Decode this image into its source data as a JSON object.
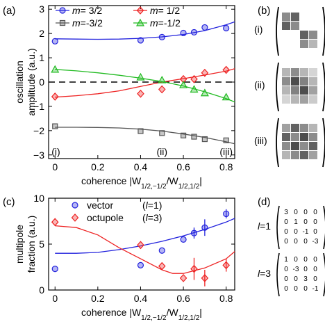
{
  "panels": {
    "a": {
      "label": "(a)"
    },
    "b": {
      "label": "(b)"
    },
    "c": {
      "label": "(c)"
    },
    "d": {
      "label": "(d)"
    }
  },
  "chart_data": [
    {
      "type": "scatter",
      "panel": "(a)",
      "ylabel": [
        "oscillation",
        "amplitude (a.u.)"
      ],
      "xlabel": "coherence |W1/2,-1/2/W1/2,1/2|",
      "xlim": [
        -0.03,
        0.84
      ],
      "ylim": [
        -3.15,
        3.15
      ],
      "xticks": [
        0,
        0.2,
        0.4,
        0.6,
        0.8
      ],
      "xtick_labels": [
        "0",
        "0.2",
        "0.4",
        "0.6",
        "0.8"
      ],
      "yticks": [
        -3,
        -2,
        -1,
        0,
        1,
        2,
        3
      ],
      "ytick_labels": [
        "−3",
        "−2",
        "−1",
        "0",
        "1",
        "2",
        "3"
      ],
      "zero_line": "dashed",
      "annotations": [
        {
          "text": "(i)",
          "x": 0.0
        },
        {
          "text": "(ii)",
          "x": 0.5
        },
        {
          "text": "(iii)",
          "x": 0.8
        }
      ],
      "series": [
        {
          "name": "m= 3/2",
          "color": "#2222dd",
          "marker": "circle",
          "x": [
            0,
            0.4,
            0.5,
            0.6,
            0.65,
            0.7,
            0.8
          ],
          "y": [
            1.68,
            1.72,
            1.85,
            2.02,
            2.05,
            2.25,
            2.22
          ],
          "fit_x": [
            0,
            0.1,
            0.2,
            0.3,
            0.4,
            0.5,
            0.6,
            0.7,
            0.8,
            0.84
          ],
          "fit_y": [
            1.78,
            1.77,
            1.76,
            1.77,
            1.8,
            1.86,
            1.96,
            2.12,
            2.36,
            2.48
          ]
        },
        {
          "name": "m= 1/2",
          "color": "#ee2222",
          "marker": "diamond",
          "x": [
            0,
            0.4,
            0.5,
            0.6,
            0.65,
            0.7,
            0.8
          ],
          "y": [
            -0.6,
            -0.48,
            -0.3,
            0.12,
            0.12,
            0.38,
            0.5
          ],
          "fit_x": [
            0,
            0.1,
            0.2,
            0.3,
            0.4,
            0.5,
            0.6,
            0.7,
            0.8,
            0.84
          ],
          "fit_y": [
            -0.62,
            -0.56,
            -0.48,
            -0.36,
            -0.18,
            0.0,
            0.14,
            0.29,
            0.45,
            0.55
          ]
        },
        {
          "name": "m=-3/2",
          "color": "#555555",
          "marker": "square",
          "x": [
            0,
            0.4,
            0.5,
            0.6,
            0.65,
            0.7,
            0.8
          ],
          "y": [
            -1.82,
            -2.02,
            -2.1,
            -2.2,
            -2.25,
            -2.35,
            -2.4
          ],
          "fit_x": [
            0,
            0.1,
            0.2,
            0.3,
            0.4,
            0.5,
            0.6,
            0.7,
            0.8,
            0.84
          ],
          "fit_y": [
            -1.86,
            -1.86,
            -1.87,
            -1.89,
            -1.94,
            -2.02,
            -2.14,
            -2.28,
            -2.46,
            -2.54
          ]
        },
        {
          "name": "m=-1/2",
          "color": "#22bb22",
          "marker": "triangle",
          "x": [
            0,
            0.4,
            0.5,
            0.6,
            0.65,
            0.7,
            0.8
          ],
          "y": [
            0.52,
            0.2,
            0.08,
            -0.12,
            -0.3,
            -0.45,
            -0.62
          ],
          "fit_x": [
            0,
            0.1,
            0.2,
            0.3,
            0.4,
            0.5,
            0.6,
            0.7,
            0.8,
            0.84
          ],
          "fit_y": [
            0.52,
            0.46,
            0.38,
            0.28,
            0.16,
            0.02,
            -0.16,
            -0.4,
            -0.68,
            -0.82
          ]
        }
      ]
    },
    {
      "type": "scatter",
      "panel": "(c)",
      "ylabel": [
        "multipole",
        "fraction (a.u.)"
      ],
      "xlabel": "coherence |W1/2,-1/2/W1/2,1/2|",
      "xlim": [
        -0.03,
        0.84
      ],
      "ylim": [
        0,
        10
      ],
      "xticks": [
        0,
        0.2,
        0.4,
        0.6,
        0.8
      ],
      "xtick_labels": [
        "0",
        "0.2",
        "0.4",
        "0.6",
        "0.8"
      ],
      "yticks": [
        0,
        5,
        10
      ],
      "ytick_labels": [
        "0",
        "5",
        "10"
      ],
      "series": [
        {
          "name": "vector",
          "legend_suffix": "(l=1)",
          "color": "#2222dd",
          "marker": "circle",
          "x": [
            0,
            0.4,
            0.5,
            0.6,
            0.65,
            0.7,
            0.8
          ],
          "y": [
            2.3,
            2.7,
            4.3,
            5.5,
            6.2,
            6.8,
            8.3
          ],
          "err": [
            0,
            0,
            0,
            0,
            0.6,
            0.9,
            0.5
          ],
          "fit_x": [
            0,
            0.1,
            0.2,
            0.3,
            0.4,
            0.5,
            0.6,
            0.7,
            0.8,
            0.84
          ],
          "fit_y": [
            4.0,
            4.0,
            4.1,
            4.4,
            4.8,
            5.3,
            5.9,
            6.6,
            7.4,
            7.8
          ]
        },
        {
          "name": "octupole",
          "legend_suffix": "(l=3)",
          "color": "#ee2222",
          "marker": "diamond",
          "x": [
            0,
            0.4,
            0.5,
            0.6,
            0.65,
            0.7,
            0.8
          ],
          "y": [
            7.4,
            4.9,
            2.6,
            1.3,
            2.3,
            1.3,
            2.7
          ],
          "err": [
            0,
            0,
            0,
            0,
            1.2,
            0.9,
            0.7
          ],
          "fit_x": [
            0,
            0.1,
            0.2,
            0.3,
            0.4,
            0.5,
            0.55,
            0.6,
            0.7,
            0.8,
            0.84
          ],
          "fit_y": [
            7.0,
            6.8,
            6.0,
            4.6,
            3.4,
            2.2,
            1.8,
            1.8,
            2.4,
            3.4,
            4.2
          ]
        }
      ]
    }
  ],
  "matrices_b": [
    {
      "label": "(i)",
      "cells": [
        [
          0.55,
          0.75,
          0,
          0
        ],
        [
          0.75,
          0.55,
          0,
          0
        ],
        [
          0,
          0,
          0.75,
          0.55
        ],
        [
          0,
          0,
          0.55,
          0.35
        ]
      ]
    },
    {
      "label": "(ii)",
      "cells": [
        [
          0.35,
          0.55,
          0.35,
          0.2
        ],
        [
          0.55,
          0.85,
          0.6,
          0.35
        ],
        [
          0.35,
          0.6,
          0.85,
          0.45
        ],
        [
          0.2,
          0.35,
          0.45,
          0.25
        ]
      ]
    },
    {
      "label": "(iii)",
      "cells": [
        [
          0.45,
          0.75,
          0.55,
          0.35
        ],
        [
          0.75,
          0.55,
          0.85,
          0.55
        ],
        [
          0.55,
          0.85,
          0.55,
          0.75
        ],
        [
          0.35,
          0.55,
          0.75,
          0.45
        ]
      ]
    }
  ],
  "matrices_d": [
    {
      "label_prefix": "l",
      "label_suffix": "=1",
      "rows": [
        [
          "3",
          "0",
          "0",
          "0"
        ],
        [
          "0",
          "1",
          "0",
          "0"
        ],
        [
          "0",
          "0",
          "-1",
          "0"
        ],
        [
          "0",
          "0",
          "0",
          "-3"
        ]
      ]
    },
    {
      "label_prefix": "l",
      "label_suffix": "=3",
      "rows": [
        [
          "1",
          "0",
          "0",
          "0"
        ],
        [
          "0",
          "-3",
          "0",
          "0"
        ],
        [
          "0",
          "0",
          "3",
          "0"
        ],
        [
          "0",
          "0",
          "0",
          "-1"
        ]
      ]
    }
  ]
}
